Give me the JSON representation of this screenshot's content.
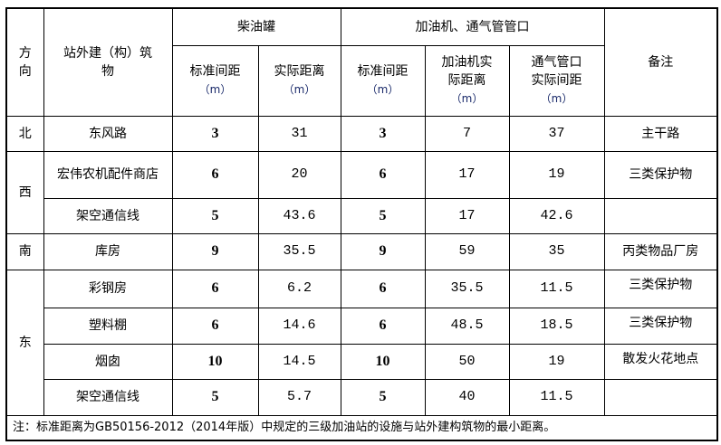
{
  "header": {
    "direction": "方向",
    "building": "站外建（构）筑物",
    "group_tank": "柴油罐",
    "group_dispenser": "加油机、通气管管口",
    "tank_std": "标准间距",
    "tank_actual": "实际距离",
    "disp_std": "标准间距",
    "disp_actual": "加油机实际距离",
    "vent_actual": "通气管口实际间距",
    "unit": "（m）",
    "remark": "备注"
  },
  "rows": [
    {
      "direction": "北",
      "building": "东风路",
      "tank_std": "3",
      "tank_actual": "31",
      "disp_std": "3",
      "disp_actual": "7",
      "vent_actual": "37",
      "remark": "主干路"
    },
    {
      "direction": "西",
      "building": "宏伟农机配件商店",
      "tank_std": "6",
      "tank_actual": "20",
      "disp_std": "6",
      "disp_actual": "17",
      "vent_actual": "19",
      "remark": "三类保护物"
    },
    {
      "direction": "",
      "building": "架空通信线",
      "tank_std": "5",
      "tank_actual": "43.6",
      "disp_std": "5",
      "disp_actual": "17",
      "vent_actual": "42.6",
      "remark": ""
    },
    {
      "direction": "南",
      "building": "库房",
      "tank_std": "9",
      "tank_actual": "35.5",
      "disp_std": "9",
      "disp_actual": "59",
      "vent_actual": "35",
      "remark": "丙类物品厂房"
    },
    {
      "direction": "东",
      "building": "彩钢房",
      "tank_std": "6",
      "tank_actual": "6.2",
      "disp_std": "6",
      "disp_actual": "35.5",
      "vent_actual": "11.5",
      "remark": "三类保护物"
    },
    {
      "direction": "",
      "building": "塑料棚",
      "tank_std": "6",
      "tank_actual": "14.6",
      "disp_std": "6",
      "disp_actual": "48.5",
      "vent_actual": "18.5",
      "remark": "三类保护物"
    },
    {
      "direction": "",
      "building": "烟囱",
      "tank_std": "10",
      "tank_actual": "14.5",
      "disp_std": "10",
      "disp_actual": "50",
      "vent_actual": "19",
      "remark": "散发火花地点"
    },
    {
      "direction": "",
      "building": "架空通信线",
      "tank_std": "5",
      "tank_actual": "5.7",
      "disp_std": "5",
      "disp_actual": "40",
      "vent_actual": "11.5",
      "remark": ""
    }
  ],
  "note": "注：标准距离为GB50156-2012（2014年版）中规定的三级加油站的设施与站外建构筑物的最小距离。"
}
